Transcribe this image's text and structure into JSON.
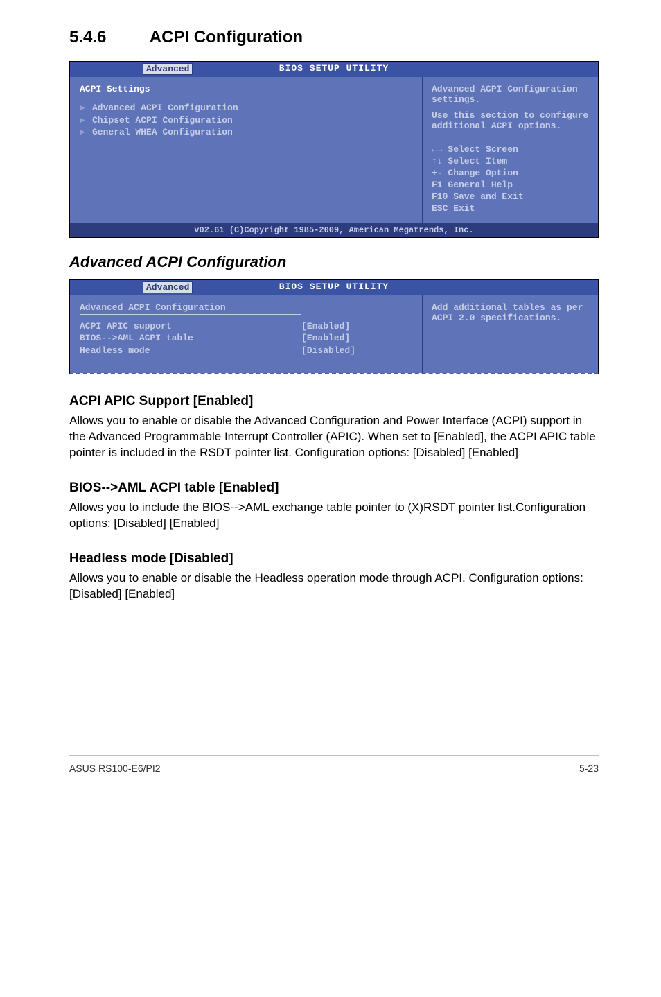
{
  "section": {
    "number": "5.4.6",
    "title": "ACPI Configuration"
  },
  "bios1": {
    "title": "BIOS SETUP UTILITY",
    "tab": "Advanced",
    "heading": "ACPI Settings",
    "items": [
      "Advanced ACPI Configuration",
      "Chipset ACPI Configuration",
      "General WHEA Configuration"
    ],
    "help1": "Advanced ACPI Configuration settings.",
    "help2": "Use this section to configure additional ACPI options.",
    "keys": [
      "←→   Select Screen",
      "↑↓    Select Item",
      "+-    Change Option",
      "F1    General Help",
      "F10   Save and Exit",
      "ESC   Exit"
    ],
    "footer": "v02.61 (C)Copyright 1985-2009, American Megatrends, Inc."
  },
  "subheading": "Advanced ACPI Configuration",
  "bios2": {
    "title": "BIOS SETUP UTILITY",
    "tab": "Advanced",
    "heading": "Advanced ACPI Configuration",
    "rows": [
      {
        "k": "ACPI APIC support",
        "v": "[Enabled]"
      },
      {
        "k": "BIOS-->AML ACPI table",
        "v": "[Enabled]"
      },
      {
        "k": "Headless mode",
        "v": "[Disabled]"
      }
    ],
    "help": "Add additional tables as per ACPI 2.0 specifications."
  },
  "blocks": [
    {
      "h": "ACPI APIC Support [Enabled]",
      "p": [
        "Allows you to enable or disable the Advanced Configuration and Power Interface (ACPI) support in the Advanced Programmable Interrupt Controller (APIC). When set to [Enabled], the ACPI APIC table pointer is included in the RSDT pointer list. Configuration options: [Disabled] [Enabled]"
      ]
    },
    {
      "h": "BIOS-->AML ACPI table [Enabled]",
      "p": [
        "Allows you to include the BIOS-->AML exchange table pointer to (X)RSDT pointer list.Configuration options: [Disabled] [Enabled]"
      ]
    },
    {
      "h": "Headless mode [Disabled]",
      "p": [
        "Allows you to enable or disable the Headless operation mode through ACPI. Configuration options: [Disabled] [Enabled]"
      ]
    }
  ],
  "footer": {
    "left": "ASUS RS100-E6/PI2",
    "right": "5-23"
  }
}
